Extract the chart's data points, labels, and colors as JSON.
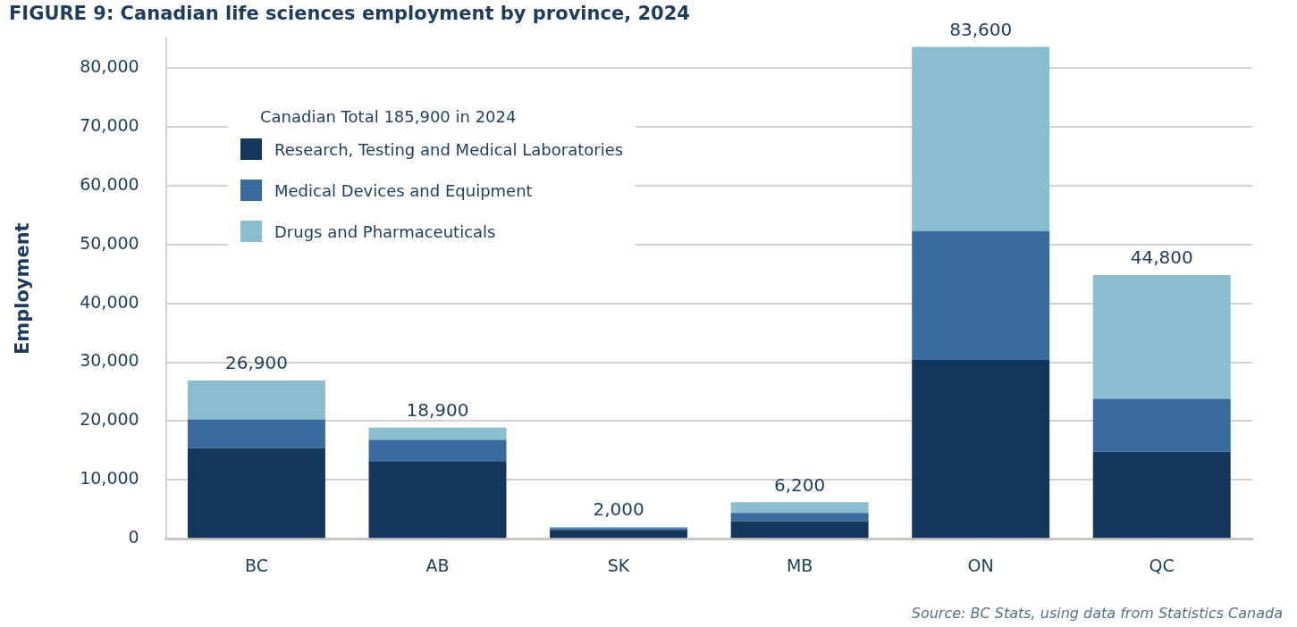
{
  "chart_data": {
    "type": "bar",
    "title": "FIGURE 9: Canadian life sciences employment by province, 2024",
    "ylabel": "Employment",
    "legend_title": "Canadian Total 185,900 in 2024",
    "annotations": [
      "Source: BC Stats, using data from Statistics Canada"
    ],
    "categories": [
      "BC",
      "AB",
      "SK",
      "MB",
      "ON",
      "QC"
    ],
    "stacked": true,
    "series": [
      {
        "name": "Research, Testing and Medical Laboratories",
        "color": "#14375d",
        "values": [
          15400,
          13200,
          1500,
          3000,
          30400,
          14800
        ]
      },
      {
        "name": "Medical Devices and Equipment",
        "color": "#3a6b9f",
        "values": [
          4900,
          3600,
          300,
          1400,
          21900,
          9000
        ]
      },
      {
        "name": "Drugs and Pharmaceuticals",
        "color": "#8abdd0",
        "values": [
          6600,
          2100,
          200,
          1800,
          31300,
          21000
        ]
      }
    ],
    "totals": [
      "26,900",
      "18,900",
      "2,000",
      "6,200",
      "83,600",
      "44,800"
    ],
    "ylim": [
      0,
      85000
    ],
    "yticks": [
      {
        "value": 0,
        "label": "0"
      },
      {
        "value": 10000,
        "label": "10,000"
      },
      {
        "value": 20000,
        "label": "20,000"
      },
      {
        "value": 30000,
        "label": "30,000"
      },
      {
        "value": 40000,
        "label": "40,000"
      },
      {
        "value": 50000,
        "label": "50,000"
      },
      {
        "value": 60000,
        "label": "60,000"
      },
      {
        "value": 70000,
        "label": "70,000"
      },
      {
        "value": 80000,
        "label": "80,000"
      }
    ],
    "grid": "y",
    "legend": "top left"
  }
}
